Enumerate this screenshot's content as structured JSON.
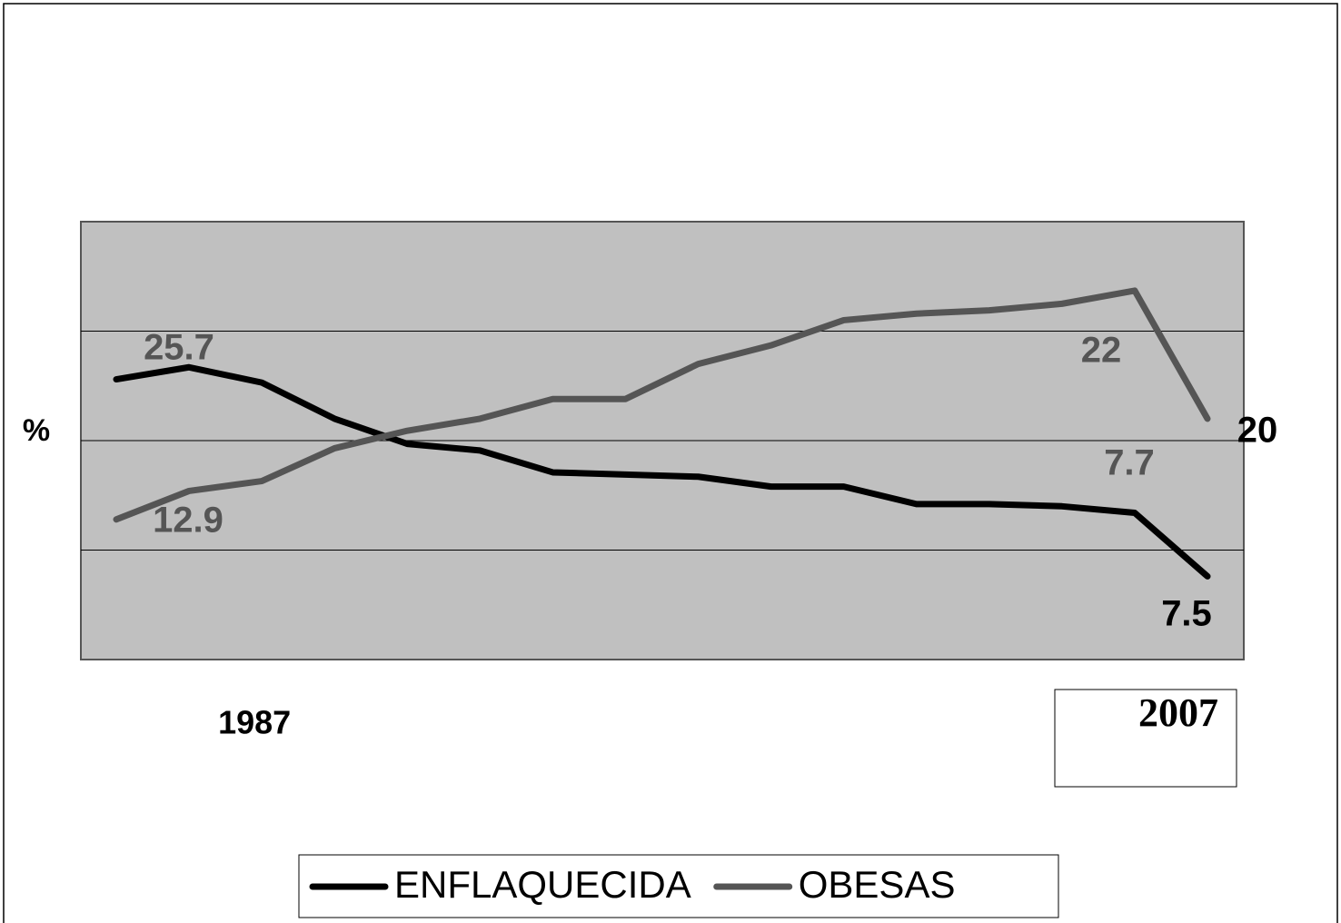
{
  "chart_data": {
    "type": "line",
    "y_label": "%",
    "categories": [
      null,
      null,
      "1987",
      null,
      null,
      null,
      null,
      null,
      null,
      null,
      null,
      null,
      null,
      null,
      null,
      "2007"
    ],
    "series": [
      {
        "name": "ENFLAQUECIDA",
        "color": "#000000",
        "values": [
          25.6,
          26.7,
          25.3,
          22.0,
          19.7,
          19.1,
          17.1,
          16.9,
          16.7,
          15.8,
          15.8,
          14.2,
          14.2,
          14.0,
          13.4,
          7.6
        ]
      },
      {
        "name": "OBESAS",
        "color": "#555555",
        "values": [
          12.8,
          15.4,
          16.3,
          19.3,
          20.9,
          22.0,
          23.8,
          23.8,
          27.0,
          28.7,
          31.0,
          31.6,
          31.9,
          32.5,
          33.7,
          22.0
        ]
      }
    ],
    "annotations": [
      {
        "text": "25.7",
        "color": "#555555"
      },
      {
        "text": "12.9",
        "color": "#555555"
      },
      {
        "text": "22",
        "color": "#555555"
      },
      {
        "text": "7.7",
        "color": "#555555"
      },
      {
        "text": "20",
        "color": "#000000"
      },
      {
        "text": "7.5",
        "color": "#000000"
      }
    ],
    "ylim": [
      0,
      40
    ],
    "yticks": [
      0,
      10,
      20,
      30,
      40
    ],
    "grid": true,
    "plot_background": "#c0c0c0",
    "legend": "bottom"
  }
}
